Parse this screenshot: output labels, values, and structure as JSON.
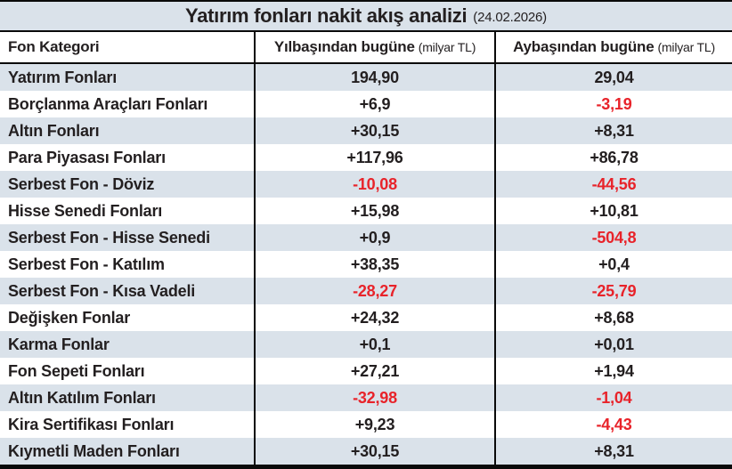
{
  "title": {
    "main": "Yatırım fonları nakit akış analizi",
    "date": "(24.02.2026)"
  },
  "header": {
    "category": "Fon Kategori",
    "ytd": "Yılbaşından bugüne",
    "mtd": "Aybaşından bugüne",
    "unit": "(milyar TL)"
  },
  "rows": [
    {
      "category": "Yatırım Fonları",
      "ytd": "194,90",
      "mtd": "29,04"
    },
    {
      "category": "Borçlanma Araçları Fonları",
      "ytd": "+6,9",
      "mtd": "-3,19"
    },
    {
      "category": "Altın Fonları",
      "ytd": "+30,15",
      "mtd": "+8,31"
    },
    {
      "category": "Para Piyasası Fonları",
      "ytd": "+117,96",
      "mtd": "+86,78"
    },
    {
      "category": "Serbest Fon - Döviz",
      "ytd": "-10,08",
      "mtd": "-44,56"
    },
    {
      "category": "Hisse Senedi Fonları",
      "ytd": "+15,98",
      "mtd": "+10,81"
    },
    {
      "category": "Serbest Fon - Hisse Senedi",
      "ytd": "+0,9",
      "mtd": "-504,8"
    },
    {
      "category": "Serbest Fon - Katılım",
      "ytd": "+38,35",
      "mtd": "+0,4"
    },
    {
      "category": "Serbest Fon - Kısa Vadeli",
      "ytd": "-28,27",
      "mtd": "-25,79"
    },
    {
      "category": "Değişken Fonlar",
      "ytd": "+24,32",
      "mtd": "+8,68"
    },
    {
      "category": "Karma Fonlar",
      "ytd": "+0,1",
      "mtd": "+0,01"
    },
    {
      "category": "Fon Sepeti Fonları",
      "ytd": "+27,21",
      "mtd": "+1,94"
    },
    {
      "category": "Altın Katılım Fonları",
      "ytd": "-32,98",
      "mtd": "-1,04"
    },
    {
      "category": "Kira Sertifikası Fonları",
      "ytd": "+9,23",
      "mtd": "-4,43"
    },
    {
      "category": "Kıymetli Maden Fonları",
      "ytd": "+30,15",
      "mtd": "+8,31"
    }
  ],
  "colors": {
    "ink": "#231f20",
    "negative_text": "#e8232a",
    "row_alt_bg": "#dae2ea",
    "border": "#0a0a0a"
  },
  "chart_data": {
    "type": "table",
    "title": "Yatırım fonları nakit akış analizi (24.02.2026)",
    "columns": [
      "Fon Kategori",
      "Yılbaşından bugüne (milyar TL)",
      "Aybaşından bugüne (milyar TL)"
    ],
    "rows": [
      {
        "category": "Yatırım Fonları",
        "ytd": 194.9,
        "mtd": 29.04
      },
      {
        "category": "Borçlanma Araçları Fonları",
        "ytd": 6.9,
        "mtd": -3.19
      },
      {
        "category": "Altın Fonları",
        "ytd": 30.15,
        "mtd": 8.31
      },
      {
        "category": "Para Piyasası Fonları",
        "ytd": 117.96,
        "mtd": 86.78
      },
      {
        "category": "Serbest Fon - Döviz",
        "ytd": -10.08,
        "mtd": -44.56
      },
      {
        "category": "Hisse Senedi Fonları",
        "ytd": 15.98,
        "mtd": 10.81
      },
      {
        "category": "Serbest Fon - Hisse Senedi",
        "ytd": 0.9,
        "mtd": -504.8
      },
      {
        "category": "Serbest Fon - Katılım",
        "ytd": 38.35,
        "mtd": 0.4
      },
      {
        "category": "Serbest Fon - Kısa Vadeli",
        "ytd": -28.27,
        "mtd": -25.79
      },
      {
        "category": "Değişken Fonlar",
        "ytd": 24.32,
        "mtd": 8.68
      },
      {
        "category": "Karma Fonlar",
        "ytd": 0.1,
        "mtd": 0.01
      },
      {
        "category": "Fon Sepeti Fonları",
        "ytd": 27.21,
        "mtd": 1.94
      },
      {
        "category": "Altın Katılım Fonları",
        "ytd": -32.98,
        "mtd": -1.04
      },
      {
        "category": "Kira Sertifikası Fonları",
        "ytd": 9.23,
        "mtd": -4.43
      },
      {
        "category": "Kıymetli Maden Fonları",
        "ytd": 30.15,
        "mtd": 8.31
      }
    ]
  }
}
